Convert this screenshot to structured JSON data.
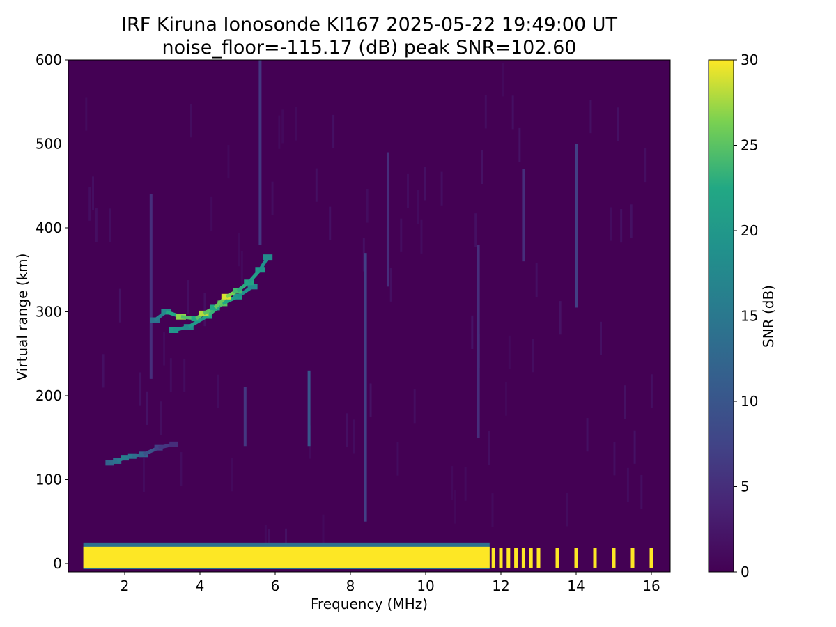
{
  "chart_data": {
    "type": "heatmap",
    "title": "IRF Kiruna Ionosonde KI167 2025-05-22 19:49:00  UT",
    "subtitle": "noise_floor=-115.17 (dB) peak SNR=102.60",
    "xlabel": "Frequency (MHz)",
    "ylabel": "Virtual range (km)",
    "colorbar_label": "SNR (dB)",
    "xlim": [
      0.5,
      16.5
    ],
    "ylim": [
      -10,
      600
    ],
    "clim": [
      0,
      30
    ],
    "xticks": [
      2,
      4,
      6,
      8,
      10,
      12,
      14,
      16
    ],
    "yticks": [
      0,
      100,
      200,
      300,
      400,
      500,
      600
    ],
    "cticks": [
      0,
      5,
      10,
      15,
      20,
      25,
      30
    ],
    "colormap": "viridis",
    "background_color": "#440154",
    "ground_echo": {
      "range_km": [
        -5,
        20
      ],
      "freq_MHz": [
        0.9,
        11.7
      ],
      "snr_dB": 30
    },
    "ground_echo_bars_MHz": [
      11.8,
      12.0,
      12.2,
      12.4,
      12.6,
      12.8,
      13.0,
      13.5,
      14.0,
      14.5,
      15.0,
      15.5,
      16.0
    ],
    "e_layer_trace": [
      {
        "f": 1.6,
        "r": 120,
        "snr": 12
      },
      {
        "f": 1.8,
        "r": 122,
        "snr": 14
      },
      {
        "f": 2.0,
        "r": 126,
        "snr": 16
      },
      {
        "f": 2.2,
        "r": 128,
        "snr": 15
      },
      {
        "f": 2.5,
        "r": 130,
        "snr": 12
      },
      {
        "f": 2.9,
        "r": 138,
        "snr": 7
      },
      {
        "f": 3.3,
        "r": 142,
        "snr": 5
      }
    ],
    "f_layer_o_trace": [
      {
        "f": 2.8,
        "r": 290,
        "snr": 14
      },
      {
        "f": 3.1,
        "r": 300,
        "snr": 18
      },
      {
        "f": 3.5,
        "r": 294,
        "snr": 27
      },
      {
        "f": 3.9,
        "r": 292,
        "snr": 22
      },
      {
        "f": 4.1,
        "r": 298,
        "snr": 28
      },
      {
        "f": 4.4,
        "r": 305,
        "snr": 22
      },
      {
        "f": 4.7,
        "r": 318,
        "snr": 29
      },
      {
        "f": 5.0,
        "r": 325,
        "snr": 24
      },
      {
        "f": 5.3,
        "r": 335,
        "snr": 22
      },
      {
        "f": 5.6,
        "r": 350,
        "snr": 20
      },
      {
        "f": 5.8,
        "r": 365,
        "snr": 18
      }
    ],
    "f_layer_x_trace": [
      {
        "f": 3.3,
        "r": 278,
        "snr": 20
      },
      {
        "f": 3.7,
        "r": 282,
        "snr": 18
      },
      {
        "f": 4.2,
        "r": 295,
        "snr": 22
      },
      {
        "f": 4.6,
        "r": 310,
        "snr": 25
      },
      {
        "f": 5.0,
        "r": 318,
        "snr": 20
      },
      {
        "f": 5.4,
        "r": 330,
        "snr": 18
      }
    ],
    "vertical_streaks": [
      {
        "f": 2.7,
        "r0": 220,
        "r1": 440,
        "snr": 5
      },
      {
        "f": 5.2,
        "r0": 140,
        "r1": 210,
        "snr": 6
      },
      {
        "f": 5.6,
        "r0": 380,
        "r1": 600,
        "snr": 6
      },
      {
        "f": 6.9,
        "r0": 140,
        "r1": 230,
        "snr": 10
      },
      {
        "f": 8.4,
        "r0": 50,
        "r1": 370,
        "snr": 7
      },
      {
        "f": 9.0,
        "r0": 330,
        "r1": 490,
        "snr": 5
      },
      {
        "f": 11.4,
        "r0": 150,
        "r1": 380,
        "snr": 5
      },
      {
        "f": 12.6,
        "r0": 360,
        "r1": 470,
        "snr": 5
      },
      {
        "f": 14.0,
        "r0": 305,
        "r1": 500,
        "snr": 7
      }
    ]
  }
}
